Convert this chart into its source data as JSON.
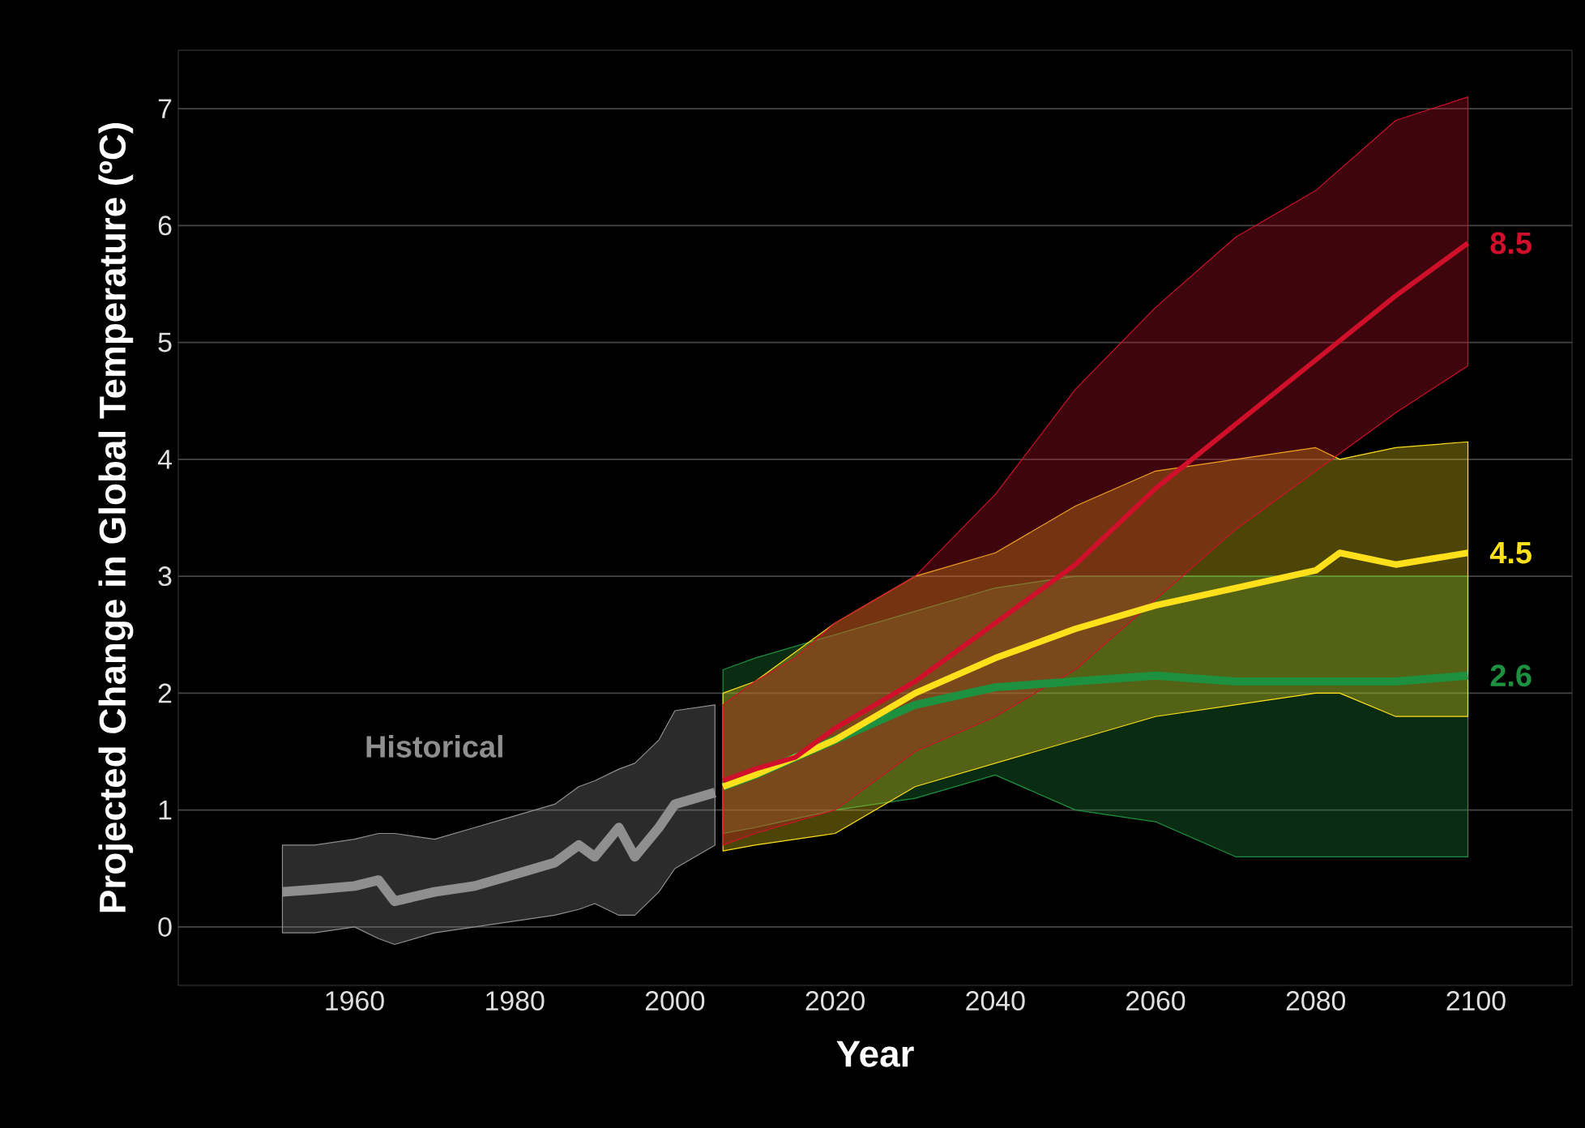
{
  "chart_data": {
    "type": "line",
    "xlabel": "Year",
    "ylabel": "Projected Change in Global Temperature (ºC)",
    "xlim": [
      1938,
      2112
    ],
    "ylim": [
      -0.5,
      7.5
    ],
    "xticks": [
      1960,
      1980,
      2000,
      2020,
      2040,
      2060,
      2080,
      2100
    ],
    "yticks": [
      0,
      1,
      2,
      3,
      4,
      5,
      6,
      7
    ],
    "grid": "y",
    "legend": false,
    "marker": "none",
    "line_style": "solid",
    "series": [
      {
        "name": "Historical",
        "color": "#8f8f8f",
        "x": [
          1951,
          1955,
          1960,
          1963,
          1965,
          1970,
          1975,
          1980,
          1985,
          1988,
          1990,
          1993,
          1995,
          1998,
          2000,
          2005
        ],
        "values": [
          0.3,
          0.32,
          0.35,
          0.4,
          0.22,
          0.3,
          0.35,
          0.45,
          0.55,
          0.7,
          0.6,
          0.85,
          0.6,
          0.85,
          1.05,
          1.15
        ],
        "lower": [
          -0.05,
          -0.05,
          0.0,
          -0.1,
          -0.15,
          -0.05,
          0.0,
          0.05,
          0.1,
          0.15,
          0.2,
          0.1,
          0.1,
          0.3,
          0.5,
          0.7
        ],
        "upper": [
          0.7,
          0.7,
          0.75,
          0.8,
          0.8,
          0.75,
          0.85,
          0.95,
          1.05,
          1.2,
          1.25,
          1.35,
          1.4,
          1.6,
          1.85,
          1.9
        ]
      },
      {
        "name": "2.6",
        "color": "#1e9140",
        "x": [
          2006,
          2010,
          2020,
          2030,
          2040,
          2050,
          2060,
          2070,
          2080,
          2090,
          2099
        ],
        "values": [
          1.2,
          1.3,
          1.6,
          1.9,
          2.05,
          2.1,
          2.15,
          2.1,
          2.1,
          2.1,
          2.15
        ],
        "lower": [
          0.8,
          0.85,
          1.0,
          1.1,
          1.3,
          1.0,
          0.9,
          0.6,
          0.6,
          0.6,
          0.6
        ],
        "upper": [
          2.2,
          2.3,
          2.5,
          2.7,
          2.9,
          3.0,
          3.0,
          3.0,
          3.0,
          3.0,
          3.0
        ]
      },
      {
        "name": "4.5",
        "color": "#ffe01a",
        "x": [
          2006,
          2010,
          2020,
          2030,
          2040,
          2050,
          2060,
          2070,
          2080,
          2083,
          2090,
          2099
        ],
        "values": [
          1.2,
          1.3,
          1.6,
          2.0,
          2.3,
          2.55,
          2.75,
          2.9,
          3.05,
          3.2,
          3.1,
          3.2
        ],
        "lower": [
          0.65,
          0.7,
          0.8,
          1.2,
          1.4,
          1.6,
          1.8,
          1.9,
          2.0,
          2.0,
          1.8,
          1.8
        ],
        "upper": [
          2.0,
          2.1,
          2.6,
          3.0,
          3.2,
          3.6,
          3.9,
          4.0,
          4.1,
          4.0,
          4.1,
          4.15
        ]
      },
      {
        "name": "8.5",
        "color": "#d0102a",
        "x": [
          2006,
          2010,
          2015,
          2020,
          2030,
          2040,
          2050,
          2060,
          2070,
          2080,
          2090,
          2099
        ],
        "values": [
          1.25,
          1.35,
          1.45,
          1.7,
          2.1,
          2.6,
          3.1,
          3.75,
          4.3,
          4.85,
          5.4,
          5.85
        ],
        "lower": [
          0.7,
          0.8,
          0.9,
          1.0,
          1.5,
          1.8,
          2.2,
          2.8,
          3.4,
          3.9,
          4.4,
          4.8
        ],
        "upper": [
          1.9,
          2.1,
          2.3,
          2.6,
          3.0,
          3.7,
          4.6,
          5.3,
          5.9,
          6.3,
          6.9,
          7.1
        ]
      }
    ]
  }
}
